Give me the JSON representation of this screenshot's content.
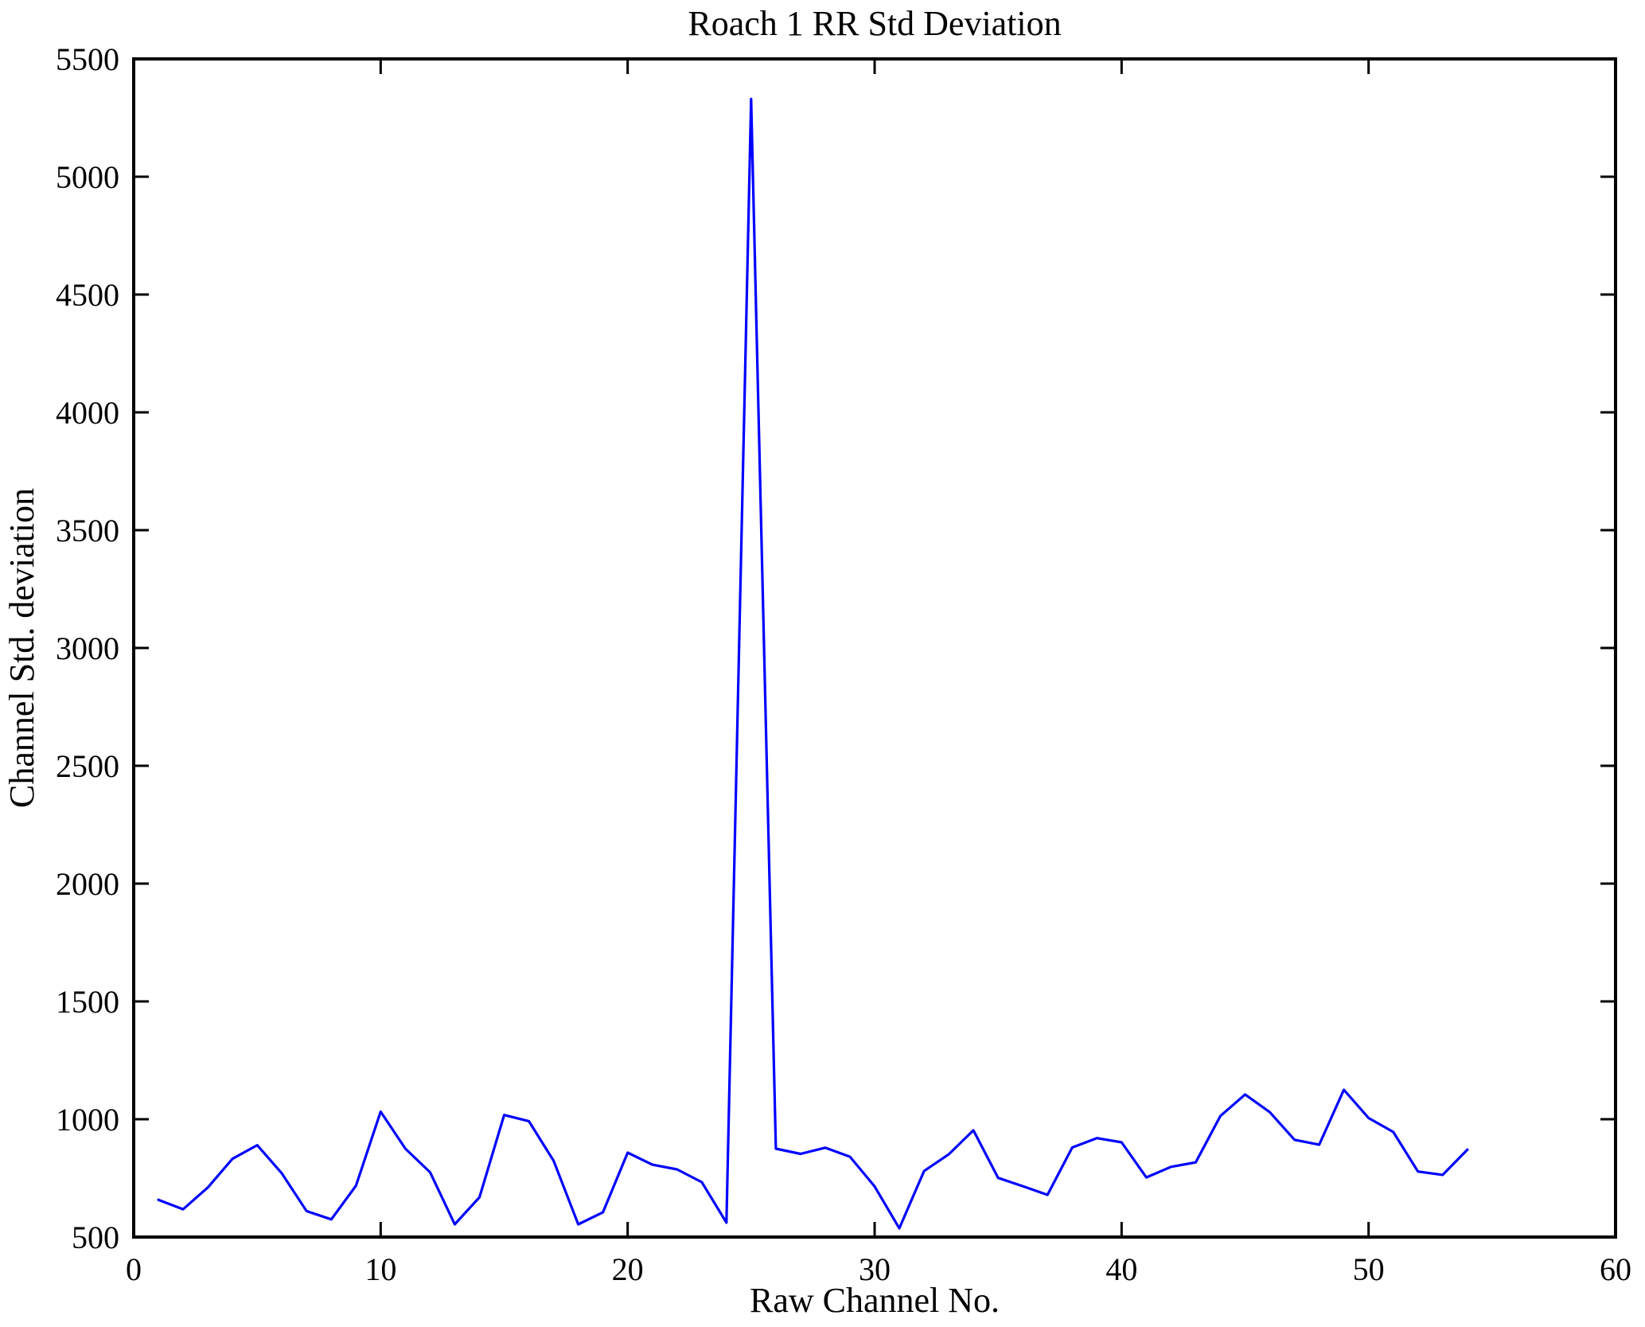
{
  "chart_data": {
    "type": "line",
    "title": "Roach 1 RR Std Deviation",
    "xlabel": "Raw Channel No.",
    "ylabel": "Channel Std. deviation",
    "xlim": [
      0,
      60
    ],
    "ylim": [
      500,
      5500
    ],
    "x_ticks": [
      0,
      10,
      20,
      30,
      40,
      50,
      60
    ],
    "y_ticks": [
      500,
      1000,
      1500,
      2000,
      2500,
      3000,
      3500,
      4000,
      4500,
      5000,
      5500
    ],
    "grid": false,
    "legend": "none",
    "box": true,
    "line_color": "#0000ff",
    "axis_color": "#000000",
    "background_color": "#ffffff",
    "series": [
      {
        "name": "Channel Std deviation",
        "x": [
          1,
          2,
          3,
          4,
          5,
          6,
          7,
          8,
          9,
          10,
          11,
          12,
          13,
          14,
          15,
          16,
          17,
          18,
          19,
          20,
          21,
          22,
          23,
          24,
          25,
          26,
          27,
          28,
          29,
          30,
          31,
          32,
          33,
          34,
          35,
          36,
          37,
          38,
          39,
          40,
          41,
          42,
          43,
          44,
          45,
          46,
          47,
          48,
          49,
          50,
          51,
          52,
          53,
          54
        ],
        "values": [
          658,
          618,
          710,
          832,
          890,
          770,
          610,
          575,
          718,
          1032,
          875,
          775,
          554,
          669,
          1018,
          992,
          824,
          554,
          605,
          858,
          807,
          787,
          733,
          561,
          5330,
          875,
          853,
          879,
          841,
          715,
          537,
          780,
          851,
          953,
          751,
          716,
          679,
          880,
          920,
          902,
          753,
          798,
          817,
          1014,
          1105,
          1030,
          913,
          892,
          1125,
          1005,
          946,
          778,
          764,
          871
        ]
      }
    ],
    "peak_point": {
      "x": 25,
      "value": 5330
    }
  }
}
